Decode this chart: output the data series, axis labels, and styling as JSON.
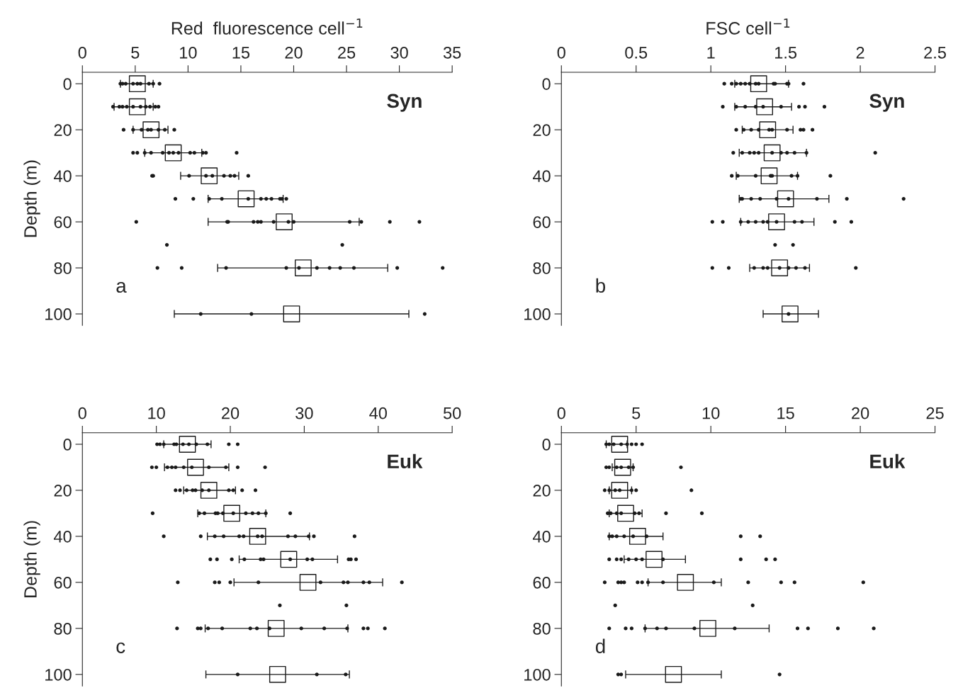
{
  "chart_data": [
    {
      "type": "scatter",
      "xlabel": "Red  fluorescence cell$^{−1}$",
      "ylabel": "Depth (m)",
      "xlim": [
        0,
        35
      ],
      "xticks": [
        0,
        5,
        10,
        15,
        20,
        25,
        30,
        35
      ],
      "ylim": [
        105,
        -5
      ],
      "yticks": [
        0,
        20,
        40,
        60,
        80,
        100
      ],
      "annotations": [
        "a",
        "Syn"
      ],
      "series": [
        {
          "type": "scatter",
          "marker": "circle",
          "color": "#1a1a1a",
          "x": [
            3.6,
            3.8,
            4.1,
            4.8,
            5.2,
            5.5,
            6.3,
            6.7,
            7.3,
            2.9,
            3.5,
            3.8,
            4.2,
            4.8,
            5.5,
            6.0,
            6.4,
            6.9,
            7.2,
            3.9,
            4.8,
            5.6,
            6.2,
            6.5,
            7.2,
            7.8,
            8.7,
            4.8,
            5.2,
            5.9,
            6.5,
            7.6,
            8.2,
            8.6,
            9.1,
            10.2,
            10.6,
            11.4,
            11.7,
            14.6,
            6.6,
            6.7,
            10.1,
            11.7,
            12.3,
            13.4,
            14.0,
            14.4,
            15.7,
            8.8,
            10.5,
            12.0,
            13.2,
            15.7,
            16.9,
            17.4,
            17.9,
            18.7,
            18.9,
            19.3,
            5.1,
            13.7,
            13.8,
            16.2,
            16.6,
            16.9,
            18.1,
            19.5,
            20.0,
            25.3,
            26.4,
            29.1,
            31.9,
            8.0,
            24.6,
            7.1,
            9.4,
            13.6,
            19.3,
            20.5,
            22.2,
            23.4,
            24.4,
            25.7,
            29.8,
            34.1,
            11.2,
            16.0,
            32.4
          ],
          "values": [
            0,
            0,
            0,
            0,
            0,
            0,
            0,
            0,
            0,
            10,
            10,
            10,
            10,
            10,
            10,
            10,
            10,
            10,
            10,
            20,
            20,
            20,
            20,
            20,
            20,
            20,
            20,
            30,
            30,
            30,
            30,
            30,
            30,
            30,
            30,
            30,
            30,
            30,
            30,
            30,
            40,
            40,
            40,
            40,
            40,
            40,
            40,
            40,
            40,
            50,
            50,
            50,
            50,
            50,
            50,
            50,
            50,
            50,
            50,
            50,
            60,
            60,
            60,
            60,
            60,
            60,
            60,
            60,
            60,
            60,
            60,
            60,
            60,
            70,
            70,
            80,
            80,
            80,
            80,
            80,
            80,
            80,
            80,
            80,
            80,
            80,
            100,
            100,
            100
          ]
        },
        {
          "type": "scatter",
          "marker": "square",
          "color": "#1a1a1a",
          "x": [
            5.2,
            5.2,
            6.5,
            8.6,
            12.0,
            15.5,
            19.1,
            20.9,
            19.8
          ],
          "values": [
            0,
            10,
            20,
            30,
            40,
            50,
            60,
            80,
            100
          ],
          "xerrors": [
            [
              3.6,
              6.7
            ],
            [
              3.0,
              6.7
            ],
            [
              4.8,
              8.1
            ],
            [
              5.9,
              11.3
            ],
            [
              9.3,
              14.8
            ],
            [
              11.9,
              19.0
            ],
            [
              11.9,
              26.2
            ],
            [
              12.8,
              28.9
            ],
            [
              8.7,
              30.9
            ]
          ]
        }
      ]
    },
    {
      "type": "scatter",
      "xlabel": "FSC cell$^{−1}$",
      "xlim": [
        0,
        2.5
      ],
      "xticks": [
        0,
        0.5,
        1,
        1.5,
        2,
        2.5
      ],
      "ylim": [
        105,
        -5
      ],
      "yticks": [
        0,
        20,
        40,
        60,
        80,
        100
      ],
      "annotations": [
        "b",
        "Syn"
      ],
      "series": [
        {
          "type": "scatter",
          "marker": "circle",
          "color": "#1a1a1a",
          "x": [
            1.09,
            1.14,
            1.17,
            1.2,
            1.23,
            1.26,
            1.3,
            1.32,
            1.42,
            1.43,
            1.51,
            1.52,
            1.62,
            1.08,
            1.17,
            1.23,
            1.3,
            1.35,
            1.47,
            1.59,
            1.63,
            1.76,
            1.17,
            1.22,
            1.27,
            1.32,
            1.39,
            1.41,
            1.51,
            1.6,
            1.62,
            1.68,
            1.15,
            1.21,
            1.26,
            1.29,
            1.32,
            1.41,
            1.47,
            1.51,
            1.56,
            1.64,
            2.1,
            1.14,
            1.18,
            1.3,
            1.4,
            1.41,
            1.54,
            1.58,
            1.8,
            1.2,
            1.21,
            1.27,
            1.33,
            1.44,
            1.52,
            1.71,
            1.91,
            2.29,
            1.01,
            1.08,
            1.2,
            1.25,
            1.3,
            1.35,
            1.38,
            1.44,
            1.56,
            1.61,
            1.83,
            1.94,
            1.43,
            1.55,
            1.01,
            1.12,
            1.29,
            1.35,
            1.38,
            1.46,
            1.52,
            1.57,
            1.63,
            1.97,
            1.52
          ],
          "values": [
            0,
            0,
            0,
            0,
            0,
            0,
            0,
            0,
            0,
            0,
            0,
            0,
            0,
            10,
            10,
            10,
            10,
            10,
            10,
            10,
            10,
            10,
            20,
            20,
            20,
            20,
            20,
            20,
            20,
            20,
            20,
            20,
            30,
            30,
            30,
            30,
            30,
            30,
            30,
            30,
            30,
            30,
            30,
            40,
            40,
            40,
            40,
            40,
            40,
            40,
            40,
            50,
            50,
            50,
            50,
            50,
            50,
            50,
            50,
            50,
            60,
            60,
            60,
            60,
            60,
            60,
            60,
            60,
            60,
            60,
            60,
            60,
            70,
            70,
            80,
            80,
            80,
            80,
            80,
            80,
            80,
            80,
            80,
            80,
            100
          ]
        },
        {
          "type": "scatter",
          "marker": "square",
          "color": "#1a1a1a",
          "x": [
            1.32,
            1.36,
            1.38,
            1.41,
            1.39,
            1.5,
            1.44,
            1.46,
            1.53
          ],
          "values": [
            0,
            10,
            20,
            30,
            40,
            50,
            60,
            80,
            100
          ],
          "xerrors": [
            [
              1.16,
              1.52
            ],
            [
              1.16,
              1.54
            ],
            [
              1.21,
              1.55
            ],
            [
              1.19,
              1.64
            ],
            [
              1.17,
              1.58
            ],
            [
              1.19,
              1.79
            ],
            [
              1.2,
              1.69
            ],
            [
              1.26,
              1.66
            ],
            [
              1.35,
              1.72
            ]
          ]
        }
      ]
    },
    {
      "type": "scatter",
      "ylabel": "Depth (m)",
      "xlim": [
        0,
        50
      ],
      "xticks": [
        0,
        10,
        20,
        30,
        40,
        50
      ],
      "ylim": [
        105,
        -5
      ],
      "yticks": [
        0,
        20,
        40,
        60,
        80,
        100
      ],
      "annotations": [
        "c",
        "Euk"
      ],
      "series": [
        {
          "type": "scatter",
          "marker": "circle",
          "color": "#1a1a1a",
          "x": [
            10.1,
            10.5,
            11.0,
            12.4,
            12.7,
            13.6,
            14.4,
            15.4,
            16.9,
            19.8,
            21.0,
            9.4,
            10.0,
            11.5,
            12.1,
            12.6,
            13.7,
            14.8,
            17.1,
            19.4,
            21.0,
            24.7,
            12.6,
            13.2,
            14.1,
            14.9,
            15.3,
            16.2,
            17.1,
            19.8,
            20.4,
            21.6,
            23.4,
            9.5,
            15.8,
            16.5,
            18.0,
            18.3,
            19.0,
            20.4,
            22.1,
            23.0,
            23.8,
            24.8,
            28.1,
            11.0,
            16.0,
            17.9,
            19.1,
            21.2,
            21.8,
            23.7,
            24.3,
            27.8,
            28.8,
            30.6,
            31.3,
            36.8,
            17.3,
            18.2,
            20.2,
            21.9,
            24.1,
            24.5,
            28.1,
            30.4,
            31.1,
            36.0,
            36.3,
            37.0,
            12.9,
            17.9,
            18.5,
            20.0,
            23.8,
            32.2,
            35.3,
            35.9,
            38.0,
            38.8,
            43.2,
            26.7,
            35.7,
            12.8,
            15.6,
            16.0,
            17.0,
            18.9,
            22.7,
            23.6,
            25.3,
            29.6,
            32.7,
            35.8,
            38.0,
            38.6,
            40.9,
            21.0,
            31.7,
            35.6
          ],
          "values": [
            0,
            0,
            0,
            0,
            0,
            0,
            0,
            0,
            0,
            0,
            0,
            10,
            10,
            10,
            10,
            10,
            10,
            10,
            10,
            10,
            10,
            10,
            20,
            20,
            20,
            20,
            20,
            20,
            20,
            20,
            20,
            20,
            20,
            30,
            30,
            30,
            30,
            30,
            30,
            30,
            30,
            30,
            30,
            30,
            30,
            40,
            40,
            40,
            40,
            40,
            40,
            40,
            40,
            40,
            40,
            40,
            40,
            40,
            50,
            50,
            50,
            50,
            50,
            50,
            50,
            50,
            50,
            50,
            50,
            50,
            60,
            60,
            60,
            60,
            60,
            60,
            60,
            60,
            60,
            60,
            60,
            70,
            70,
            80,
            80,
            80,
            80,
            80,
            80,
            80,
            80,
            80,
            80,
            80,
            80,
            80,
            80,
            100,
            100,
            100
          ]
        },
        {
          "type": "scatter",
          "marker": "square",
          "color": "#1a1a1a",
          "x": [
            14.2,
            15.3,
            17.1,
            20.2,
            23.7,
            27.9,
            30.5,
            26.2,
            26.4
          ],
          "values": [
            0,
            10,
            20,
            30,
            40,
            50,
            60,
            80,
            100
          ],
          "xerrors": [
            [
              11.0,
              17.4
            ],
            [
              11.1,
              19.8
            ],
            [
              13.7,
              20.7
            ],
            [
              15.6,
              24.8
            ],
            [
              16.9,
              30.7
            ],
            [
              21.2,
              34.5
            ],
            [
              20.5,
              40.6
            ],
            [
              16.6,
              35.9
            ],
            [
              16.7,
              36.1
            ]
          ]
        }
      ]
    },
    {
      "type": "scatter",
      "xlim": [
        0,
        25
      ],
      "xticks": [
        0,
        5,
        10,
        15,
        20,
        25
      ],
      "ylim": [
        105,
        -5
      ],
      "yticks": [
        0,
        20,
        40,
        60,
        80,
        100
      ],
      "annotations": [
        "d",
        "Euk"
      ],
      "series": [
        {
          "type": "scatter",
          "marker": "circle",
          "color": "#1a1a1a",
          "x": [
            3.0,
            3.2,
            3.5,
            4.0,
            4.4,
            4.7,
            5.0,
            5.4,
            3.0,
            3.2,
            3.7,
            4.0,
            4.5,
            4.8,
            8.0,
            2.9,
            3.2,
            3.6,
            3.9,
            4.7,
            5.0,
            8.7,
            3.1,
            3.3,
            3.7,
            4.0,
            4.9,
            5.2,
            7.0,
            9.4,
            3.2,
            3.4,
            3.7,
            4.2,
            4.8,
            5.7,
            12.0,
            13.3,
            3.2,
            3.7,
            4.0,
            4.5,
            5.0,
            5.4,
            6.8,
            12.0,
            13.7,
            14.3,
            2.9,
            3.8,
            4.0,
            4.2,
            5.1,
            5.4,
            5.8,
            6.8,
            10.2,
            12.5,
            14.7,
            15.6,
            20.2,
            3.6,
            12.8,
            3.2,
            4.3,
            4.7,
            5.6,
            6.4,
            7.0,
            8.9,
            11.6,
            15.8,
            16.5,
            18.5,
            20.9,
            3.8,
            4.0,
            14.6
          ],
          "values": [
            0,
            0,
            0,
            0,
            0,
            0,
            0,
            0,
            10,
            10,
            10,
            10,
            10,
            10,
            10,
            20,
            20,
            20,
            20,
            20,
            20,
            20,
            30,
            30,
            30,
            30,
            30,
            30,
            30,
            30,
            40,
            40,
            40,
            40,
            40,
            40,
            40,
            40,
            50,
            50,
            50,
            50,
            50,
            50,
            50,
            50,
            50,
            50,
            60,
            60,
            60,
            60,
            60,
            60,
            60,
            60,
            60,
            60,
            60,
            60,
            60,
            70,
            70,
            80,
            80,
            80,
            80,
            80,
            80,
            80,
            80,
            80,
            80,
            80,
            80,
            100,
            100,
            100
          ]
        },
        {
          "type": "scatter",
          "marker": "square",
          "color": "#1a1a1a",
          "x": [
            3.9,
            4.1,
            3.9,
            4.3,
            5.1,
            6.2,
            8.3,
            9.8,
            7.5
          ],
          "values": [
            0,
            10,
            20,
            30,
            40,
            50,
            60,
            80,
            100
          ],
          "xerrors": [
            [
              3.0,
              4.4
            ],
            [
              3.4,
              4.8
            ],
            [
              3.2,
              4.7
            ],
            [
              3.2,
              5.4
            ],
            [
              3.2,
              6.8
            ],
            [
              4.2,
              8.3
            ],
            [
              5.8,
              10.7
            ],
            [
              5.6,
              13.9
            ],
            [
              4.3,
              10.7
            ]
          ]
        }
      ]
    }
  ]
}
